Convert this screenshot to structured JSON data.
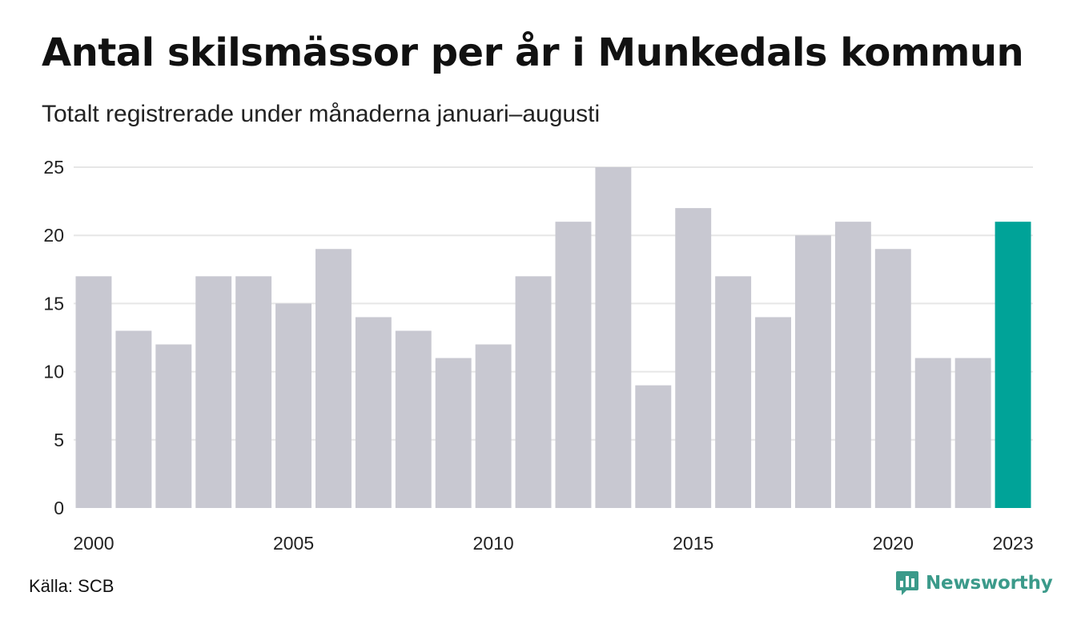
{
  "header": {
    "title": "Antal skilsmässor per år i Munkedals kommun",
    "subtitle": "Totalt registrerade under månaderna januari–augusti"
  },
  "footer": {
    "source": "Källa: SCB",
    "brand": "Newsworthy"
  },
  "colors": {
    "bar": "#c8c8d1",
    "highlight": "#00a398",
    "grid": "#e6e6e6",
    "brand": "#3b9a8a"
  },
  "icons": {
    "brand_logo": "newsworthy-logo-icon"
  },
  "chart_data": {
    "type": "bar",
    "title": "Antal skilsmässor per år i Munkedals kommun",
    "subtitle": "Totalt registrerade under månaderna januari–augusti",
    "categories": [
      "2000",
      "2001",
      "2002",
      "2003",
      "2004",
      "2005",
      "2006",
      "2007",
      "2008",
      "2009",
      "2010",
      "2011",
      "2012",
      "2013",
      "2014",
      "2015",
      "2016",
      "2017",
      "2018",
      "2019",
      "2020",
      "2021",
      "2022",
      "2023"
    ],
    "values": [
      17,
      13,
      12,
      17,
      17,
      15,
      19,
      14,
      13,
      11,
      12,
      17,
      21,
      25,
      9,
      22,
      17,
      14,
      20,
      21,
      19,
      11,
      11,
      21
    ],
    "highlight_category": "2023",
    "x_tick_labels": [
      "2000",
      "2005",
      "2010",
      "2015",
      "2020",
      "2023"
    ],
    "y_ticks": [
      0,
      5,
      10,
      15,
      20,
      25
    ],
    "ylim": [
      0,
      25
    ],
    "xlabel": "",
    "ylabel": "",
    "grid": true
  }
}
